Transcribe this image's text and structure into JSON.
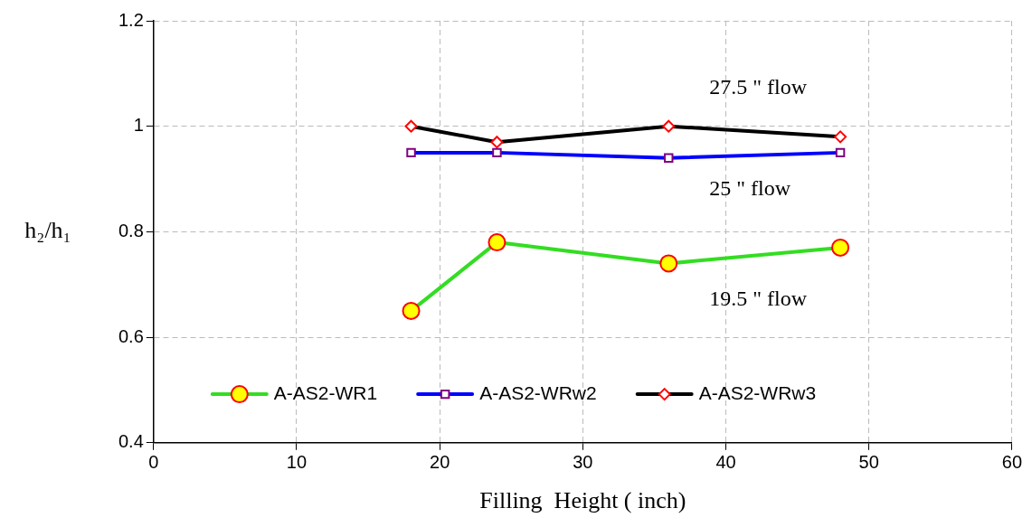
{
  "chart_data": {
    "type": "line",
    "xlabel": "Filling  Height ( inch)",
    "ylabel": "h₂/h₁",
    "series": [
      {
        "name": "A-AS2-WR1",
        "color": "#33dd22",
        "x": [
          18,
          24,
          36,
          48
        ],
        "values": [
          0.65,
          0.78,
          0.74,
          0.77
        ],
        "marker": "circle"
      },
      {
        "name": "A-AS2-WRw2",
        "color": "#0000ff",
        "x": [
          18,
          24,
          36,
          48
        ],
        "values": [
          0.95,
          0.95,
          0.94,
          0.95
        ],
        "marker": "square"
      },
      {
        "name": "A-AS2-WRw3",
        "color": "#000000",
        "x": [
          18,
          24,
          36,
          48
        ],
        "values": [
          1.0,
          0.97,
          1.0,
          0.98
        ],
        "marker": "diamond"
      }
    ],
    "xlim": [
      0,
      60
    ],
    "xticks": [
      0,
      10,
      20,
      30,
      40,
      50,
      60
    ],
    "ylim": [
      0.4,
      1.2
    ],
    "yticks": [
      0.4,
      0.6,
      0.8,
      1,
      1.2
    ],
    "grid": true,
    "legend": "bottom",
    "line_style": "solid",
    "annotations": [
      "27.5 \" flow",
      "25 \" flow",
      "19.5 \" flow"
    ]
  }
}
